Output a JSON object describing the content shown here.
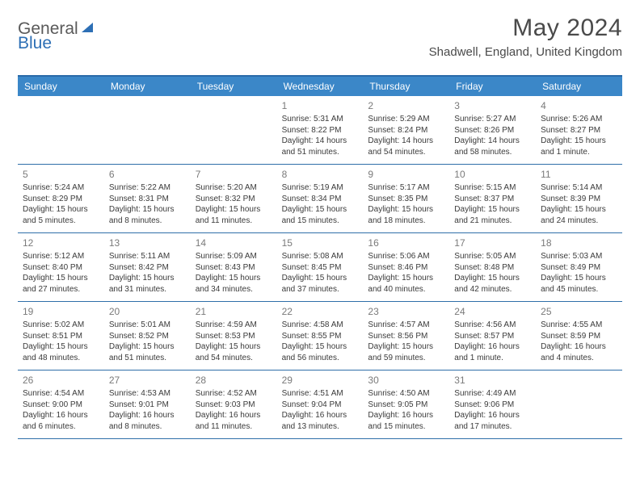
{
  "brand": {
    "part1": "General",
    "part2": "Blue"
  },
  "title": "May 2024",
  "location": "Shadwell, England, United Kingdom",
  "colors": {
    "accent": "#3b87c8",
    "accent_dark": "#2a6aa8",
    "text": "#3a3a3a",
    "muted": "#7a7a7a",
    "brand_gray": "#5a5a5a",
    "brand_blue": "#2d6fb5"
  },
  "day_labels": [
    "Sunday",
    "Monday",
    "Tuesday",
    "Wednesday",
    "Thursday",
    "Friday",
    "Saturday"
  ],
  "weeks": [
    [
      null,
      null,
      null,
      {
        "n": "1",
        "sr": "5:31 AM",
        "ss": "8:22 PM",
        "dl": "14 hours and 51 minutes."
      },
      {
        "n": "2",
        "sr": "5:29 AM",
        "ss": "8:24 PM",
        "dl": "14 hours and 54 minutes."
      },
      {
        "n": "3",
        "sr": "5:27 AM",
        "ss": "8:26 PM",
        "dl": "14 hours and 58 minutes."
      },
      {
        "n": "4",
        "sr": "5:26 AM",
        "ss": "8:27 PM",
        "dl": "15 hours and 1 minute."
      }
    ],
    [
      {
        "n": "5",
        "sr": "5:24 AM",
        "ss": "8:29 PM",
        "dl": "15 hours and 5 minutes."
      },
      {
        "n": "6",
        "sr": "5:22 AM",
        "ss": "8:31 PM",
        "dl": "15 hours and 8 minutes."
      },
      {
        "n": "7",
        "sr": "5:20 AM",
        "ss": "8:32 PM",
        "dl": "15 hours and 11 minutes."
      },
      {
        "n": "8",
        "sr": "5:19 AM",
        "ss": "8:34 PM",
        "dl": "15 hours and 15 minutes."
      },
      {
        "n": "9",
        "sr": "5:17 AM",
        "ss": "8:35 PM",
        "dl": "15 hours and 18 minutes."
      },
      {
        "n": "10",
        "sr": "5:15 AM",
        "ss": "8:37 PM",
        "dl": "15 hours and 21 minutes."
      },
      {
        "n": "11",
        "sr": "5:14 AM",
        "ss": "8:39 PM",
        "dl": "15 hours and 24 minutes."
      }
    ],
    [
      {
        "n": "12",
        "sr": "5:12 AM",
        "ss": "8:40 PM",
        "dl": "15 hours and 27 minutes."
      },
      {
        "n": "13",
        "sr": "5:11 AM",
        "ss": "8:42 PM",
        "dl": "15 hours and 31 minutes."
      },
      {
        "n": "14",
        "sr": "5:09 AM",
        "ss": "8:43 PM",
        "dl": "15 hours and 34 minutes."
      },
      {
        "n": "15",
        "sr": "5:08 AM",
        "ss": "8:45 PM",
        "dl": "15 hours and 37 minutes."
      },
      {
        "n": "16",
        "sr": "5:06 AM",
        "ss": "8:46 PM",
        "dl": "15 hours and 40 minutes."
      },
      {
        "n": "17",
        "sr": "5:05 AM",
        "ss": "8:48 PM",
        "dl": "15 hours and 42 minutes."
      },
      {
        "n": "18",
        "sr": "5:03 AM",
        "ss": "8:49 PM",
        "dl": "15 hours and 45 minutes."
      }
    ],
    [
      {
        "n": "19",
        "sr": "5:02 AM",
        "ss": "8:51 PM",
        "dl": "15 hours and 48 minutes."
      },
      {
        "n": "20",
        "sr": "5:01 AM",
        "ss": "8:52 PM",
        "dl": "15 hours and 51 minutes."
      },
      {
        "n": "21",
        "sr": "4:59 AM",
        "ss": "8:53 PM",
        "dl": "15 hours and 54 minutes."
      },
      {
        "n": "22",
        "sr": "4:58 AM",
        "ss": "8:55 PM",
        "dl": "15 hours and 56 minutes."
      },
      {
        "n": "23",
        "sr": "4:57 AM",
        "ss": "8:56 PM",
        "dl": "15 hours and 59 minutes."
      },
      {
        "n": "24",
        "sr": "4:56 AM",
        "ss": "8:57 PM",
        "dl": "16 hours and 1 minute."
      },
      {
        "n": "25",
        "sr": "4:55 AM",
        "ss": "8:59 PM",
        "dl": "16 hours and 4 minutes."
      }
    ],
    [
      {
        "n": "26",
        "sr": "4:54 AM",
        "ss": "9:00 PM",
        "dl": "16 hours and 6 minutes."
      },
      {
        "n": "27",
        "sr": "4:53 AM",
        "ss": "9:01 PM",
        "dl": "16 hours and 8 minutes."
      },
      {
        "n": "28",
        "sr": "4:52 AM",
        "ss": "9:03 PM",
        "dl": "16 hours and 11 minutes."
      },
      {
        "n": "29",
        "sr": "4:51 AM",
        "ss": "9:04 PM",
        "dl": "16 hours and 13 minutes."
      },
      {
        "n": "30",
        "sr": "4:50 AM",
        "ss": "9:05 PM",
        "dl": "16 hours and 15 minutes."
      },
      {
        "n": "31",
        "sr": "4:49 AM",
        "ss": "9:06 PM",
        "dl": "16 hours and 17 minutes."
      },
      null
    ]
  ],
  "labels": {
    "sunrise": "Sunrise:",
    "sunset": "Sunset:",
    "daylight": "Daylight:"
  }
}
